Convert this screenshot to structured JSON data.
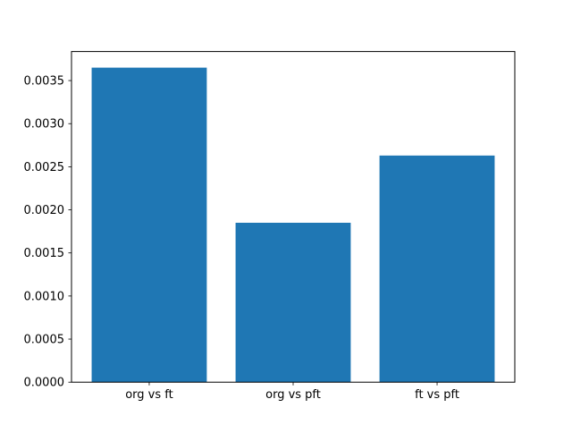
{
  "chart_data": {
    "type": "bar",
    "title": "",
    "xlabel": "",
    "ylabel": "",
    "categories": [
      "org vs ft",
      "org vs pft",
      "ft vs pft"
    ],
    "values": [
      0.00365,
      0.00185,
      0.00263
    ],
    "ylim": [
      0,
      0.003837
    ],
    "y_ticks": [
      0.0,
      0.0005,
      0.001,
      0.0015,
      0.002,
      0.0025,
      0.003,
      0.0035
    ],
    "y_tick_labels": [
      "0.0000",
      "0.0005",
      "0.0010",
      "0.0015",
      "0.0020",
      "0.0025",
      "0.0030",
      "0.0035"
    ],
    "grid": false,
    "legend": null,
    "bar_color": "#1f77b4",
    "axis_color": "#000000",
    "background_color": "#ffffff"
  }
}
